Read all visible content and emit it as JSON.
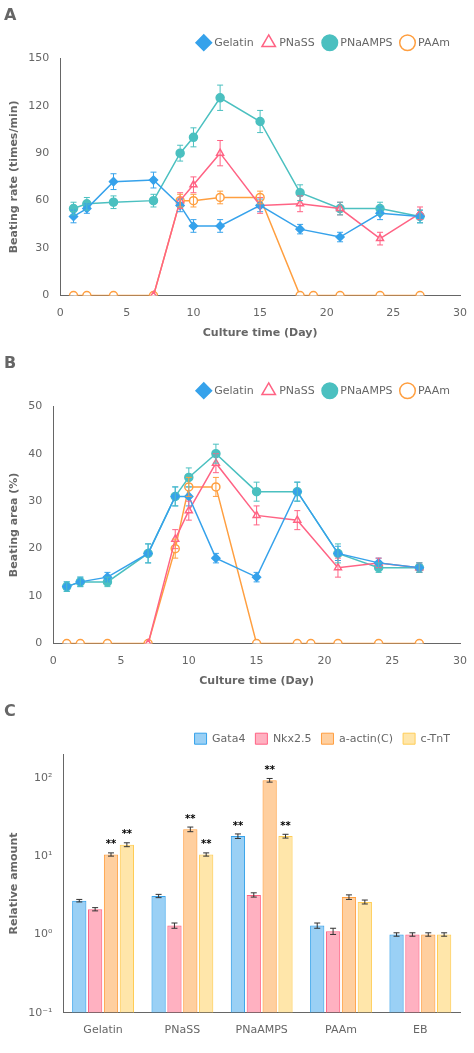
{
  "chart_data": [
    {
      "type": "line",
      "title": "A",
      "xlabel": "Culture time (Day)",
      "ylabel": "Beating rate (times/min)",
      "xlim": [
        0,
        30
      ],
      "xticks": [
        0,
        5,
        10,
        15,
        20,
        25,
        30
      ],
      "ylim": [
        0,
        150
      ],
      "yticks": [
        0,
        30,
        60,
        90,
        120,
        150
      ],
      "grid": false,
      "legend": "upper right",
      "series": [
        {
          "name": "Gelatin",
          "marker": "diamond",
          "x": [
            1,
            2,
            4,
            7,
            9,
            10,
            12,
            15,
            18,
            21,
            24,
            27
          ],
          "values": [
            50,
            55,
            72,
            73,
            57,
            44,
            44,
            57,
            42,
            37,
            52,
            50
          ],
          "errors": [
            4,
            3,
            5,
            5,
            4,
            4,
            4,
            4,
            3,
            3,
            4,
            4
          ]
        },
        {
          "name": "PNaSS",
          "marker": "open triangle",
          "x": [
            7,
            9,
            10,
            12,
            15,
            18,
            21,
            24,
            27
          ],
          "values": [
            0,
            60,
            70,
            90,
            57,
            58,
            55,
            36,
            52
          ],
          "errors": [
            0,
            5,
            5,
            8,
            5,
            5,
            4,
            4,
            4
          ]
        },
        {
          "name": "PNaAMPS",
          "marker": "circle",
          "x": [
            1,
            2,
            4,
            7,
            9,
            10,
            12,
            15,
            18,
            21,
            24,
            27
          ],
          "values": [
            55,
            58,
            59,
            60,
            90,
            100,
            125,
            110,
            65,
            55,
            55,
            50
          ],
          "errors": [
            4,
            4,
            4,
            4,
            5,
            6,
            8,
            7,
            5,
            4,
            4,
            4
          ]
        },
        {
          "name": "PAAm",
          "marker": "open circle",
          "x": [
            1,
            2,
            4,
            7,
            9,
            10,
            12,
            15,
            18,
            19,
            21,
            24,
            27
          ],
          "values": [
            0,
            0,
            0,
            0,
            60,
            60,
            62,
            62,
            0,
            0,
            0,
            0,
            0
          ],
          "errors": [
            0,
            0,
            0,
            0,
            4,
            4,
            4,
            4,
            0,
            0,
            0,
            0,
            0
          ]
        }
      ]
    },
    {
      "type": "line",
      "title": "B",
      "xlabel": "Culture time (Day)",
      "ylabel": "Beating area (%)",
      "xlim": [
        0,
        30
      ],
      "xticks": [
        0,
        5,
        10,
        15,
        20,
        25,
        30
      ],
      "ylim": [
        0,
        50
      ],
      "yticks": [
        0,
        10,
        20,
        30,
        40,
        50
      ],
      "grid": false,
      "legend": "upper right",
      "series": [
        {
          "name": "Gelatin",
          "marker": "diamond",
          "x": [
            1,
            2,
            4,
            7,
            9,
            10,
            12,
            15,
            18,
            21,
            24,
            27
          ],
          "values": [
            12,
            13,
            14,
            19,
            31,
            31,
            18,
            14,
            32,
            19,
            17,
            16
          ],
          "errors": [
            1,
            1,
            1,
            2,
            2,
            2,
            1,
            1,
            2,
            1.5,
            1,
            1
          ]
        },
        {
          "name": "PNaSS",
          "marker": "open triangle",
          "x": [
            7,
            9,
            10,
            12,
            15,
            18,
            21,
            24,
            27
          ],
          "values": [
            0,
            22,
            28,
            38,
            27,
            26,
            16,
            17,
            16
          ],
          "errors": [
            0,
            2,
            2,
            2,
            2,
            2,
            2,
            1,
            1
          ]
        },
        {
          "name": "PNaAMPS",
          "marker": "circle",
          "x": [
            1,
            2,
            4,
            7,
            9,
            10,
            12,
            15,
            18,
            21,
            24,
            27
          ],
          "values": [
            12,
            13,
            13,
            19,
            31,
            35,
            40,
            32,
            32,
            19,
            16,
            16
          ],
          "errors": [
            1,
            1,
            1,
            2,
            2,
            2,
            2,
            2,
            2,
            2,
            1,
            1
          ]
        },
        {
          "name": "PAAm",
          "marker": "open circle",
          "x": [
            1,
            2,
            4,
            7,
            9,
            10,
            12,
            15,
            18,
            19,
            21,
            24,
            27
          ],
          "values": [
            0,
            0,
            0,
            0,
            20,
            33,
            33,
            0,
            0,
            0,
            0,
            0,
            0
          ],
          "errors": [
            0,
            0,
            0,
            0,
            2,
            2,
            2,
            0,
            0,
            0,
            0,
            0,
            0
          ]
        }
      ]
    },
    {
      "type": "bar",
      "title": "C",
      "ylabel": "Relative amount",
      "categories": [
        "Gelatin",
        "PNaSS",
        "PNaAMPS",
        "PAAm",
        "EB"
      ],
      "log": "y",
      "ylim": [
        0.1,
        200
      ],
      "yticks": [
        {
          "value": 0.1,
          "label": "10⁻¹"
        },
        {
          "value": 1,
          "label": "10⁰"
        },
        {
          "value": 10,
          "label": "10¹"
        },
        {
          "value": 100,
          "label": "10²"
        }
      ],
      "grid": false,
      "legend": "upper right",
      "series": [
        {
          "name": "Gata4",
          "values": [
            2.7,
            3.1,
            18.0,
            1.3,
            1.0
          ],
          "errors": [
            0.1,
            0.15,
            1.2,
            0.1,
            0.05
          ]
        },
        {
          "name": "Nkx2.5",
          "values": [
            2.1,
            1.3,
            3.2,
            1.1,
            1.0
          ],
          "errors": [
            0.1,
            0.1,
            0.2,
            0.1,
            0.05
          ]
        },
        {
          "name": "a-actin(C)",
          "values": [
            10.5,
            22.0,
            93.0,
            3.0,
            1.0
          ],
          "errors": [
            0.5,
            1.5,
            5.0,
            0.2,
            0.05
          ]
        },
        {
          "name": "c-TnT",
          "values": [
            14.0,
            10.5,
            18.0,
            2.6,
            1.0
          ],
          "errors": [
            0.8,
            0.5,
            1.0,
            0.15,
            0.05
          ]
        }
      ],
      "annotations": [
        {
          "category": "Gelatin",
          "series": "a-actin(C)",
          "text": "**"
        },
        {
          "category": "Gelatin",
          "series": "c-TnT",
          "text": "**"
        },
        {
          "category": "PNaSS",
          "series": "a-actin(C)",
          "text": "**"
        },
        {
          "category": "PNaSS",
          "series": "c-TnT",
          "text": "**"
        },
        {
          "category": "PNaAMPS",
          "series": "Gata4",
          "text": "**"
        },
        {
          "category": "PNaAMPS",
          "series": "a-actin(C)",
          "text": "**"
        },
        {
          "category": "PNaAMPS",
          "series": "c-TnT",
          "text": "**"
        }
      ]
    }
  ]
}
